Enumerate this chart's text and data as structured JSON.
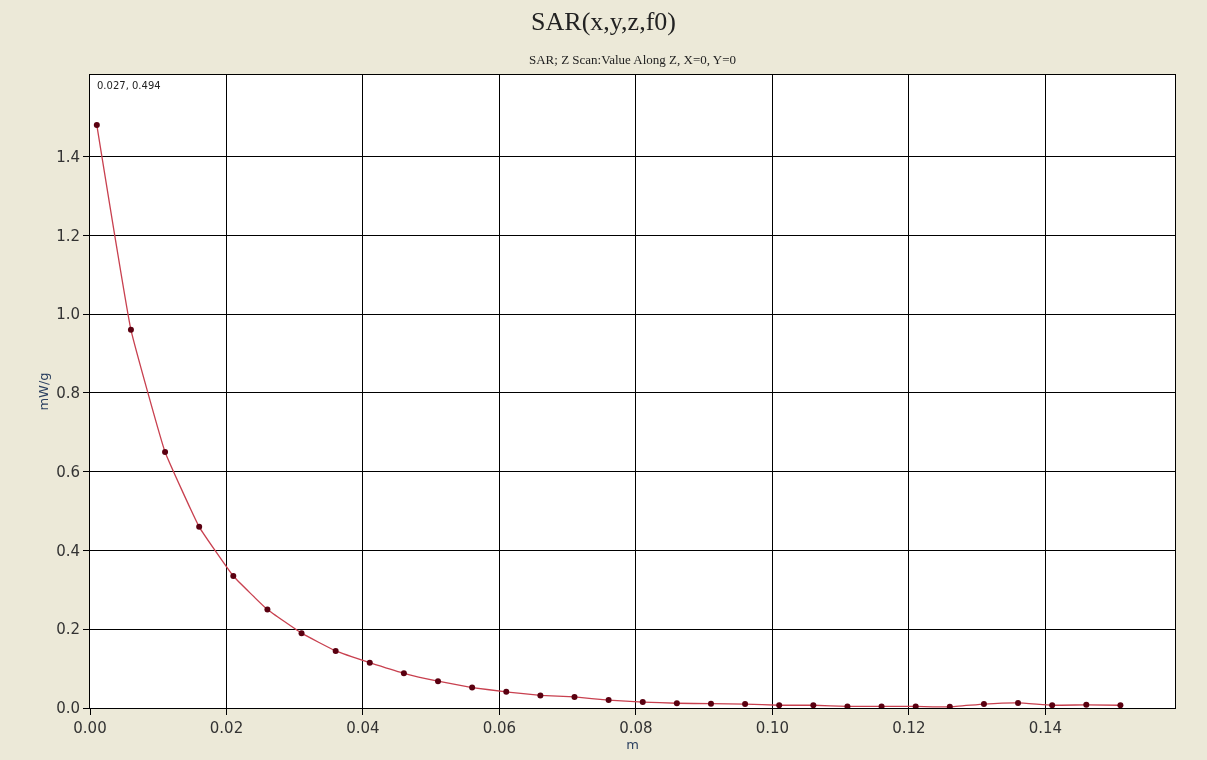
{
  "chart_data": {
    "type": "line",
    "title": "SAR(x,y,z,f0)",
    "subtitle": "SAR; Z Scan:Value Along Z, X=0, Y=0",
    "xlabel": "m",
    "ylabel": "mW/g",
    "annotations": [
      "0.027, 0.494"
    ],
    "x": [
      0.001,
      0.006,
      0.011,
      0.016,
      0.021,
      0.026,
      0.031,
      0.036,
      0.041,
      0.046,
      0.051,
      0.056,
      0.061,
      0.066,
      0.071,
      0.076,
      0.081,
      0.086,
      0.091,
      0.096,
      0.101,
      0.106,
      0.111,
      0.116,
      0.121,
      0.126,
      0.131,
      0.136,
      0.141,
      0.146,
      0.151
    ],
    "series": [
      {
        "color": "#c8404f",
        "values": [
          1.48,
          0.96,
          0.65,
          0.46,
          0.335,
          0.25,
          0.19,
          0.145,
          0.115,
          0.088,
          0.068,
          0.052,
          0.041,
          0.032,
          0.028,
          0.02,
          0.015,
          0.012,
          0.011,
          0.01,
          0.007,
          0.007,
          0.004,
          0.004,
          0.004,
          0.003,
          0.01,
          0.013,
          0.007,
          0.008,
          0.007
        ]
      }
    ],
    "xlim": [
      0,
      0.159
    ],
    "xticks": [
      {
        "value": 0,
        "label": "0.00"
      },
      0.02,
      0.04,
      0.06,
      0.08,
      {
        "value": 0.1,
        "label": "0.10"
      },
      0.12,
      0.14
    ],
    "ylim": [
      0,
      1.607
    ],
    "yticks": [
      {
        "value": 0,
        "label": "0.0"
      },
      0.2,
      0.4,
      0.6,
      0.8,
      {
        "value": 1,
        "label": "1.0"
      },
      1.2,
      1.4
    ],
    "grid": true,
    "marker": "circle",
    "line_style": "solid",
    "legend": false
  }
}
